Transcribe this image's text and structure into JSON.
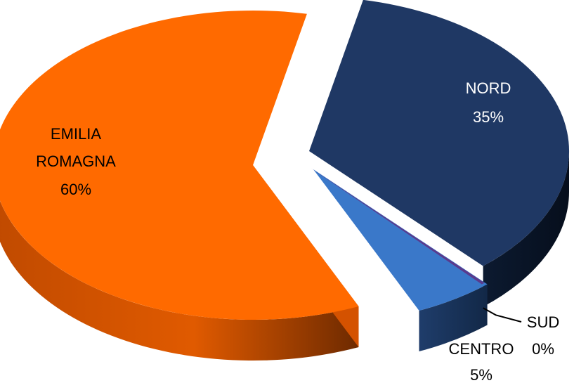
{
  "chart_data": {
    "type": "pie",
    "style": "3d-exploded",
    "slices": [
      {
        "label": "NORD",
        "value": 35,
        "pct_label": "35%",
        "color": "#1f3864",
        "text_color": "#ffffff"
      },
      {
        "label": "SUD",
        "value": 0,
        "pct_label": "0%",
        "color": "#5b3a8c",
        "text_color": "#000000"
      },
      {
        "label": "CENTRO",
        "value": 5,
        "pct_label": "5%",
        "color": "#3a78c9",
        "text_color": "#000000"
      },
      {
        "label": "EMILIA ROMAGNA",
        "value": 60,
        "pct_label": "60%",
        "color": "#ff6a00",
        "text_color": "#000000"
      }
    ],
    "label_lines": {
      "EMILIA ROMAGNA": [
        "EMILIA",
        "ROMAGNA"
      ]
    }
  }
}
